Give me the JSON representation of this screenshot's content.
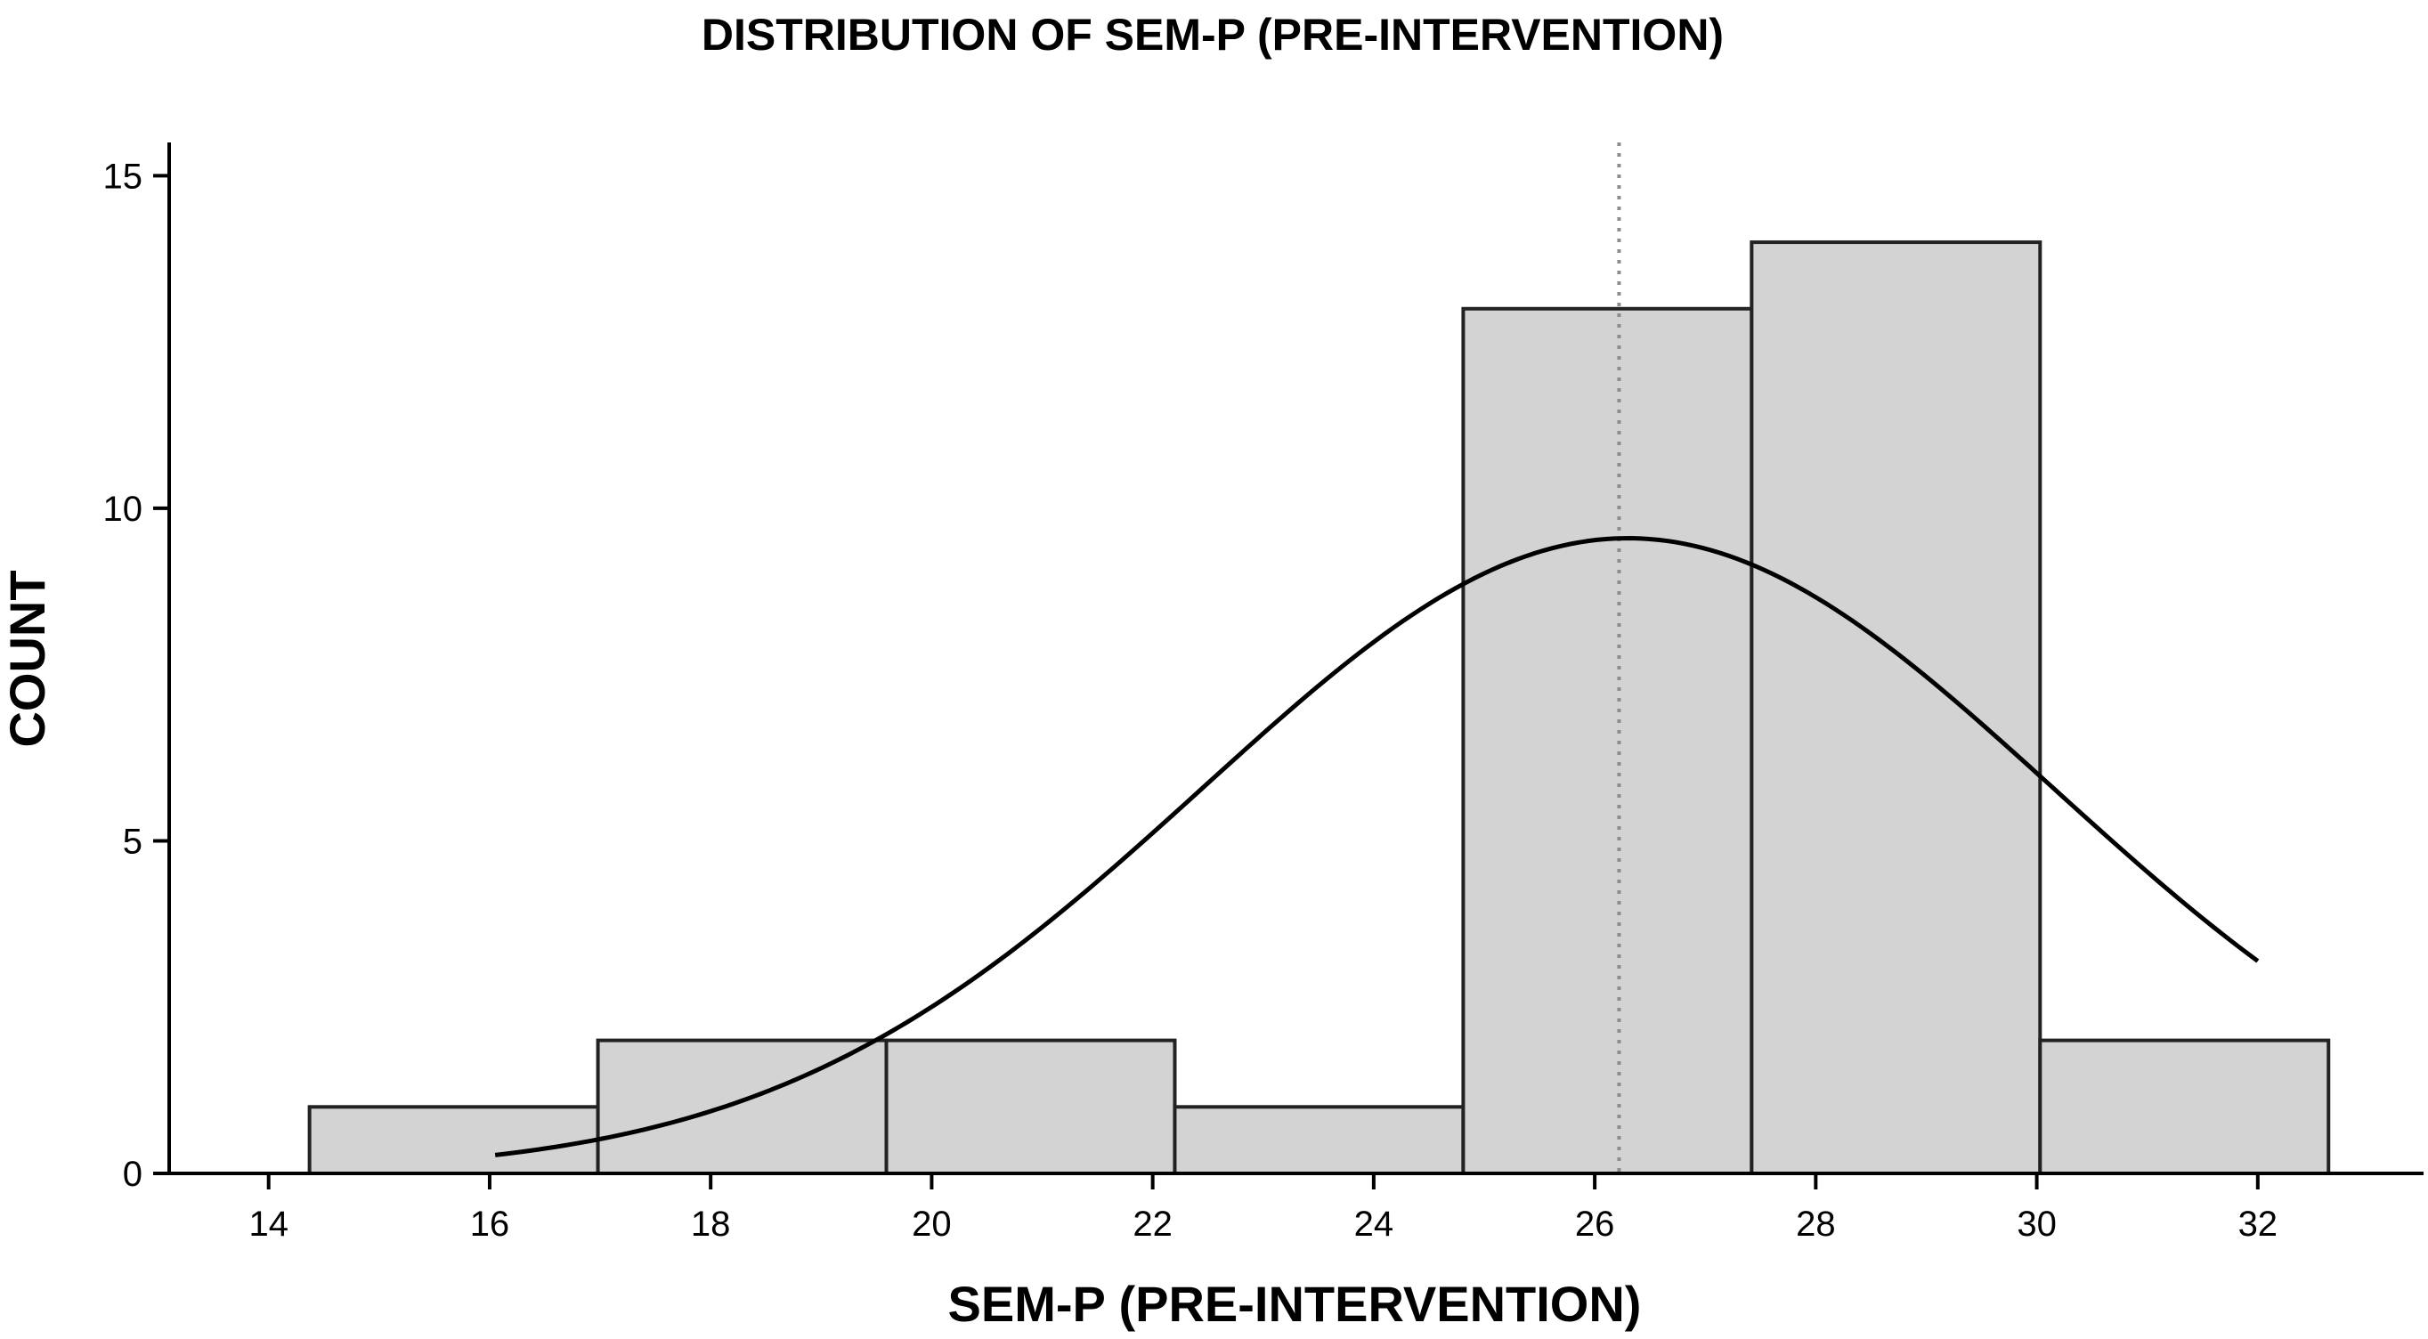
{
  "chart_data": {
    "type": "bar",
    "title": "DISTRIBUTION OF SEM-P (PRE-INTERVENTION)",
    "xlabel": "SEM-P (PRE-INTERVENTION)",
    "ylabel": "COUNT",
    "xlim": [
      13.1,
      33.5
    ],
    "ylim": [
      0,
      15.5
    ],
    "x_ticks": [
      14,
      16,
      18,
      20,
      22,
      24,
      26,
      28,
      30,
      32
    ],
    "y_ticks": [
      0,
      5,
      10,
      15
    ],
    "bins": [
      {
        "start": 14.37,
        "end": 16.98,
        "count": 1
      },
      {
        "start": 16.98,
        "end": 19.59,
        "count": 2
      },
      {
        "start": 19.59,
        "end": 22.2,
        "count": 2
      },
      {
        "start": 22.2,
        "end": 24.81,
        "count": 1
      },
      {
        "start": 24.81,
        "end": 27.42,
        "count": 13
      },
      {
        "start": 27.42,
        "end": 30.03,
        "count": 14
      },
      {
        "start": 30.03,
        "end": 32.64,
        "count": 2
      }
    ],
    "normal_curve": {
      "mean": 26.3,
      "sd": 3.85,
      "peak": 9.55,
      "x_range": [
        16.05,
        32.0
      ]
    },
    "mean_line": {
      "x": 26.22,
      "style": "dotted"
    },
    "grid": false,
    "colors": {
      "bar_fill": "#d3d3d3",
      "bar_edge": "#222222",
      "curve": "#000000",
      "mean_line": "#8c8c8c",
      "axis": "#000000"
    }
  }
}
